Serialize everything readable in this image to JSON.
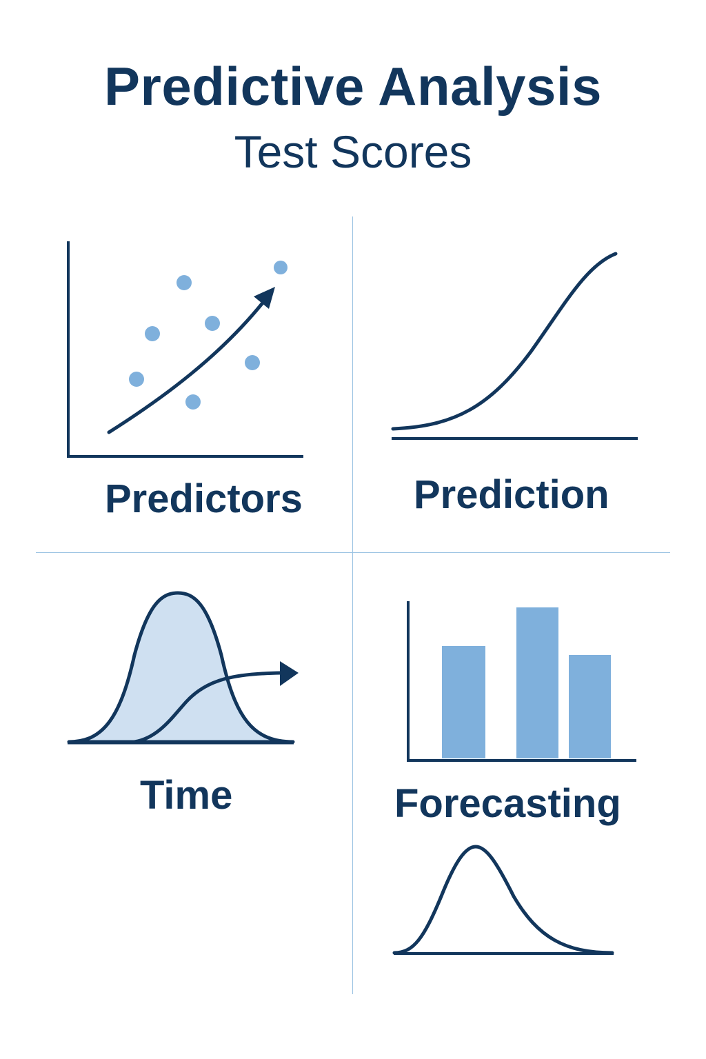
{
  "header": {
    "title": "Predictive Analysis",
    "subtitle": "Test Scores"
  },
  "panels": {
    "predictors": {
      "label": "Predictors",
      "icon": "scatter-trend-icon"
    },
    "prediction": {
      "label": "Prediction",
      "icon": "s-curve-icon"
    },
    "time": {
      "label": "Time",
      "icon": "bell-curve-shift-icon"
    },
    "forecasting": {
      "label": "Forecasting",
      "icon": "bar-chart-icon"
    },
    "distribution": {
      "icon": "bell-curve-icon"
    }
  },
  "colors": {
    "ink": "#12365c",
    "accent": "#7fb0dc",
    "fill_light": "#cfe0f1",
    "divider": "#9cc3e3"
  }
}
